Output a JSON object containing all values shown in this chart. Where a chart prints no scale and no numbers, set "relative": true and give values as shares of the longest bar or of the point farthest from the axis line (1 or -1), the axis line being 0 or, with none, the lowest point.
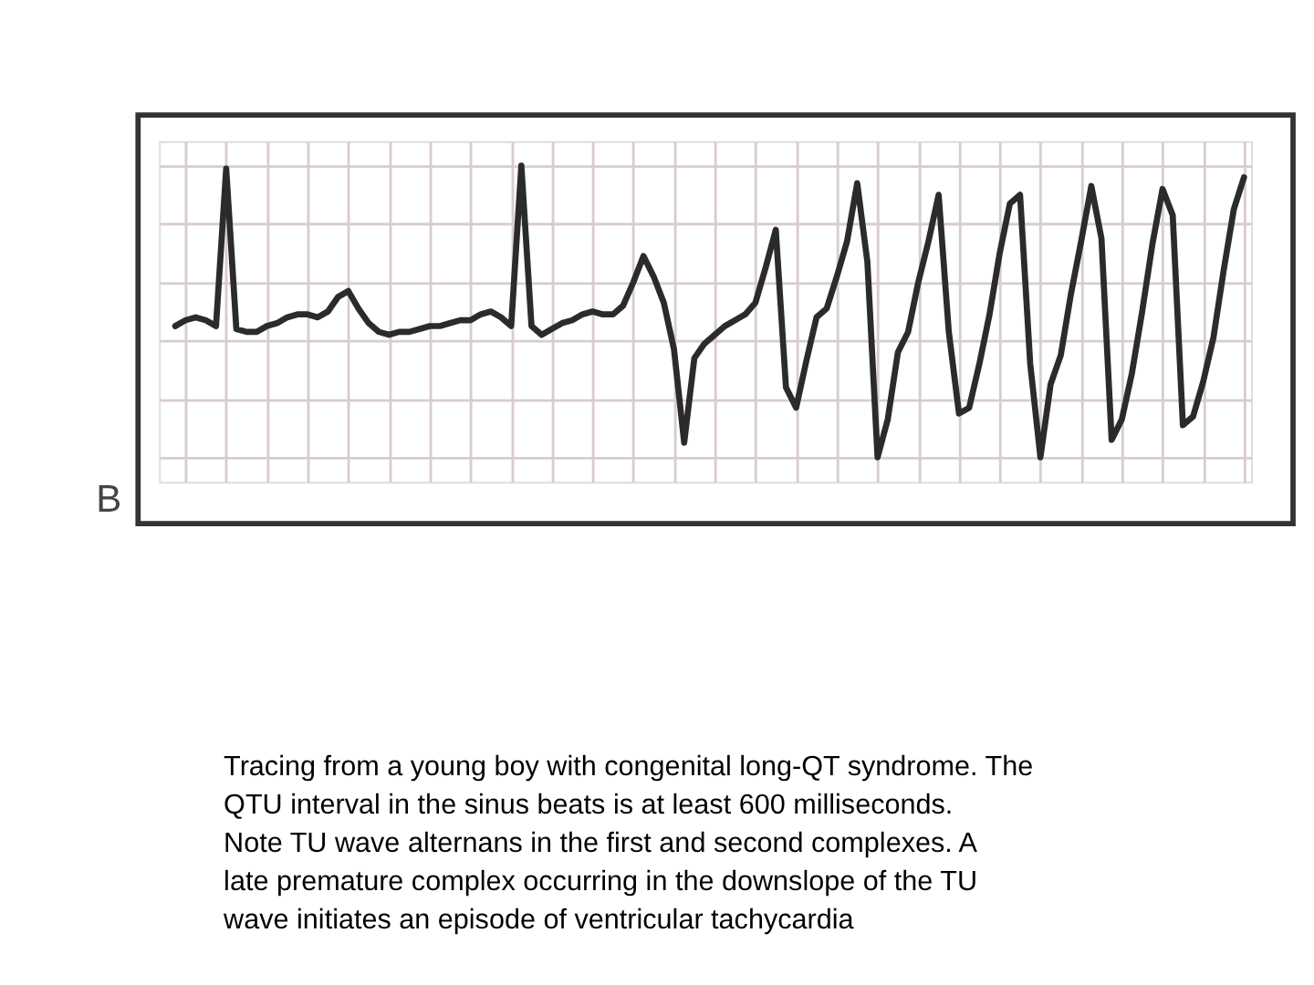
{
  "chart_data": {
    "type": "line",
    "relative": true,
    "grid": true,
    "categories": [
      null,
      null,
      null,
      null,
      null,
      null,
      null,
      null,
      null,
      null,
      null,
      null,
      null,
      null,
      null,
      null,
      null,
      null,
      null,
      null,
      null,
      null,
      null,
      null,
      null,
      null,
      null,
      null,
      null,
      null,
      null,
      null,
      null,
      null,
      null,
      null,
      null,
      null,
      null,
      null,
      null,
      null,
      null,
      null,
      null,
      null,
      null,
      null,
      null,
      null,
      null,
      null,
      null,
      null,
      null,
      null,
      null,
      null,
      null,
      null,
      null,
      null,
      null,
      null,
      null,
      null,
      null,
      null,
      null,
      null,
      null,
      null,
      null,
      null,
      null,
      null,
      null,
      null,
      null,
      null,
      null,
      null,
      null,
      null,
      null,
      null,
      null,
      null,
      null,
      null,
      null,
      null,
      null,
      null,
      null,
      null,
      null,
      null,
      null,
      null,
      null,
      null,
      null,
      null,
      null,
      null
    ],
    "annotations": [
      "B",
      "Tracing from a young boy with congenital long-QT syndrome. The QTU interval in the sinus beats is at least 600 milliseconds. Note TU wave alternans in the first and second complexes. A late premature complex occurring in the downslope of the TU wave initiates an episode of ventricular tachycardia"
    ],
    "series": [
      {
        "color": "#2b2b2b",
        "values": [
          0.45,
          0.47,
          0.48,
          0.47,
          0.45,
          0.99,
          0.44,
          0.43,
          0.43,
          0.45,
          0.46,
          0.48,
          0.49,
          0.49,
          0.48,
          0.5,
          0.55,
          0.57,
          0.51,
          0.46,
          0.43,
          0.42,
          0.43,
          0.43,
          0.44,
          0.45,
          0.45,
          0.46,
          0.47,
          0.47,
          0.49,
          0.5,
          0.48,
          0.45,
          1.0,
          0.45,
          0.42,
          0.44,
          0.46,
          0.47,
          0.49,
          0.5,
          0.49,
          0.49,
          0.52,
          0.6,
          0.69,
          0.62,
          0.53,
          0.37,
          0.05,
          0.34,
          0.39,
          0.42,
          0.45,
          0.47,
          0.49,
          0.53,
          0.65,
          0.78,
          0.24,
          0.17,
          0.33,
          0.48,
          0.51,
          0.62,
          0.74,
          0.94,
          0.67,
          0.0,
          0.13,
          0.36,
          0.43,
          0.6,
          0.74,
          0.9,
          0.43,
          0.15,
          0.17,
          0.32,
          0.49,
          0.7,
          0.87,
          0.9,
          0.32,
          0.0,
          0.25,
          0.35,
          0.56,
          0.74,
          0.93,
          0.75,
          0.06,
          0.13,
          0.29,
          0.5,
          0.73,
          0.92,
          0.83,
          0.11,
          0.14,
          0.26,
          0.41,
          0.64,
          0.85,
          0.96
        ]
      }
    ]
  }
}
